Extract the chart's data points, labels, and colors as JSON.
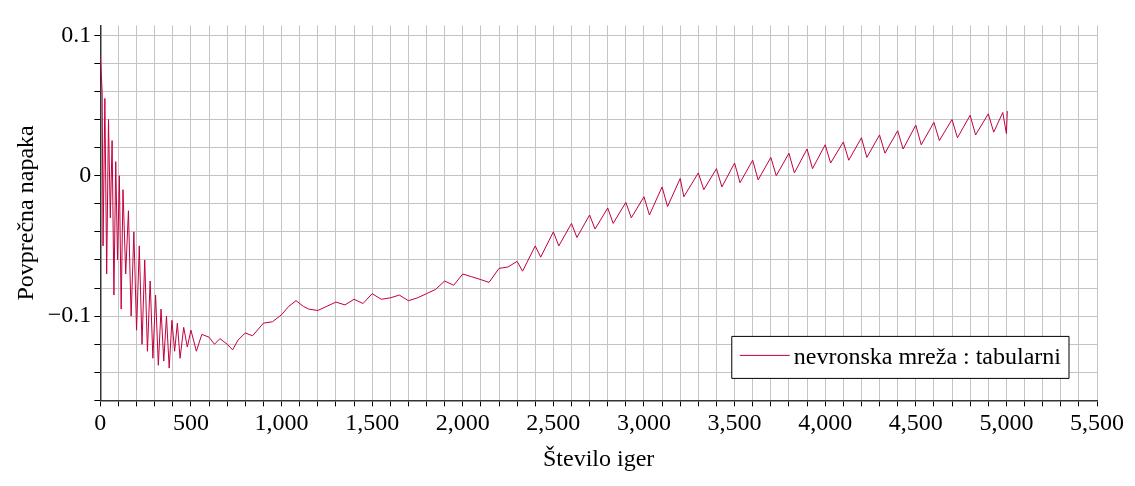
{
  "chart_data": {
    "type": "line",
    "xlabel": "Število iger",
    "ylabel": "Povprečna napaka",
    "xlim": [
      0,
      5500
    ],
    "ylim": [
      -0.16,
      0.107
    ],
    "xticks": [
      0,
      {
        "value": 100,
        "label": null
      },
      {
        "value": 200,
        "label": null
      },
      {
        "value": 300,
        "label": null
      },
      {
        "value": 400,
        "label": null
      },
      500,
      {
        "value": 600,
        "label": null
      },
      {
        "value": 700,
        "label": null
      },
      {
        "value": 800,
        "label": null
      },
      {
        "value": 900,
        "label": null
      },
      {
        "value": 1000,
        "label": "1,000"
      },
      {
        "value": 1100,
        "label": null
      },
      {
        "value": 1200,
        "label": null
      },
      {
        "value": 1300,
        "label": null
      },
      {
        "value": 1400,
        "label": null
      },
      {
        "value": 1500,
        "label": "1,500"
      },
      {
        "value": 1600,
        "label": null
      },
      {
        "value": 1700,
        "label": null
      },
      {
        "value": 1800,
        "label": null
      },
      {
        "value": 1900,
        "label": null
      },
      {
        "value": 2000,
        "label": "2,000"
      },
      {
        "value": 2100,
        "label": null
      },
      {
        "value": 2200,
        "label": null
      },
      {
        "value": 2300,
        "label": null
      },
      {
        "value": 2400,
        "label": null
      },
      {
        "value": 2500,
        "label": "2,500"
      },
      {
        "value": 2600,
        "label": null
      },
      {
        "value": 2700,
        "label": null
      },
      {
        "value": 2800,
        "label": null
      },
      {
        "value": 2900,
        "label": null
      },
      {
        "value": 3000,
        "label": "3,000"
      },
      {
        "value": 3100,
        "label": null
      },
      {
        "value": 3200,
        "label": null
      },
      {
        "value": 3300,
        "label": null
      },
      {
        "value": 3400,
        "label": null
      },
      {
        "value": 3500,
        "label": "3,500"
      },
      {
        "value": 3600,
        "label": null
      },
      {
        "value": 3700,
        "label": null
      },
      {
        "value": 3800,
        "label": null
      },
      {
        "value": 3900,
        "label": null
      },
      {
        "value": 4000,
        "label": "4,000"
      },
      {
        "value": 4100,
        "label": null
      },
      {
        "value": 4200,
        "label": null
      },
      {
        "value": 4300,
        "label": null
      },
      {
        "value": 4400,
        "label": null
      },
      {
        "value": 4500,
        "label": "4,500"
      },
      {
        "value": 4600,
        "label": null
      },
      {
        "value": 4700,
        "label": null
      },
      {
        "value": 4800,
        "label": null
      },
      {
        "value": 4900,
        "label": null
      },
      {
        "value": 5000,
        "label": "5,000"
      },
      {
        "value": 5100,
        "label": null
      },
      {
        "value": 5200,
        "label": null
      },
      {
        "value": 5300,
        "label": null
      },
      {
        "value": 5400,
        "label": null
      },
      {
        "value": 5500,
        "label": "5,500"
      }
    ],
    "yticks": [
      {
        "value": -0.16,
        "label": null
      },
      {
        "value": -0.14,
        "label": null
      },
      {
        "value": -0.12,
        "label": null
      },
      {
        "value": -0.1,
        "label": "−0.1"
      },
      {
        "value": -0.08,
        "label": null
      },
      {
        "value": -0.06,
        "label": null
      },
      {
        "value": -0.04,
        "label": null
      },
      {
        "value": -0.02,
        "label": null
      },
      0,
      {
        "value": 0.02,
        "label": null
      },
      {
        "value": 0.04,
        "label": null
      },
      {
        "value": 0.06,
        "label": null
      },
      {
        "value": 0.08,
        "label": null
      },
      0.1
    ],
    "grid": true,
    "legend": "bottom right",
    "marker": "none",
    "line_style": "solid",
    "series": [
      {
        "name": "nevronska mreža : tabularni",
        "color": "#c2003e",
        "x": [
          0,
          10,
          15,
          25,
          35,
          45,
          55,
          65,
          75,
          85,
          95,
          105,
          115,
          125,
          140,
          155,
          170,
          185,
          200,
          215,
          230,
          245,
          260,
          275,
          290,
          305,
          320,
          335,
          350,
          365,
          380,
          395,
          410,
          425,
          440,
          460,
          480,
          500,
          530,
          560,
          600,
          630,
          660,
          700,
          730,
          760,
          800,
          840,
          900,
          950,
          1000,
          1040,
          1080,
          1120,
          1150,
          1200,
          1250,
          1300,
          1350,
          1400,
          1450,
          1500,
          1550,
          1600,
          1650,
          1700,
          1750,
          1800,
          1850,
          1900,
          1950,
          2000,
          2050,
          2100,
          2145,
          2200,
          2250,
          2300,
          2330,
          2400,
          2430,
          2500,
          2530,
          2600,
          2630,
          2700,
          2730,
          2800,
          2830,
          2900,
          2930,
          3000,
          3030,
          3100,
          3130,
          3200,
          3220,
          3300,
          3330,
          3400,
          3430,
          3500,
          3530,
          3600,
          3630,
          3700,
          3730,
          3800,
          3830,
          3900,
          3930,
          4000,
          4030,
          4100,
          4130,
          4200,
          4230,
          4300,
          4330,
          4400,
          4430,
          4500,
          4530,
          4600,
          4630,
          4700,
          4730,
          4800,
          4830,
          4900,
          4930,
          4980,
          5000,
          5005
        ],
        "values": [
          0.085,
          0.06,
          -0.05,
          0.055,
          -0.07,
          0.04,
          -0.03,
          0.025,
          -0.085,
          0.01,
          -0.06,
          0.0,
          -0.095,
          -0.01,
          -0.07,
          -0.025,
          -0.1,
          -0.04,
          -0.11,
          -0.05,
          -0.12,
          -0.06,
          -0.125,
          -0.075,
          -0.13,
          -0.085,
          -0.135,
          -0.095,
          -0.132,
          -0.1,
          -0.137,
          -0.103,
          -0.125,
          -0.105,
          -0.13,
          -0.108,
          -0.122,
          -0.11,
          -0.125,
          -0.113,
          -0.115,
          -0.12,
          -0.116,
          -0.12,
          -0.124,
          -0.117,
          -0.112,
          -0.114,
          -0.105,
          -0.104,
          -0.099,
          -0.093,
          -0.089,
          -0.093,
          -0.095,
          -0.096,
          -0.093,
          -0.09,
          -0.092,
          -0.088,
          -0.091,
          -0.084,
          -0.088,
          -0.087,
          -0.085,
          -0.089,
          -0.087,
          -0.084,
          -0.081,
          -0.075,
          -0.078,
          -0.07,
          -0.072,
          -0.074,
          -0.076,
          -0.066,
          -0.065,
          -0.061,
          -0.068,
          -0.05,
          -0.058,
          -0.04,
          -0.05,
          -0.034,
          -0.044,
          -0.028,
          -0.038,
          -0.023,
          -0.034,
          -0.019,
          -0.03,
          -0.015,
          -0.028,
          -0.008,
          -0.022,
          -0.002,
          -0.015,
          0.002,
          -0.01,
          0.005,
          -0.008,
          0.009,
          -0.005,
          0.011,
          -0.003,
          0.013,
          0.0,
          0.016,
          0.002,
          0.019,
          0.005,
          0.022,
          0.009,
          0.024,
          0.011,
          0.027,
          0.013,
          0.029,
          0.016,
          0.032,
          0.019,
          0.036,
          0.022,
          0.038,
          0.025,
          0.04,
          0.027,
          0.043,
          0.029,
          0.044,
          0.031,
          0.045,
          0.03,
          0.046
        ]
      }
    ]
  }
}
